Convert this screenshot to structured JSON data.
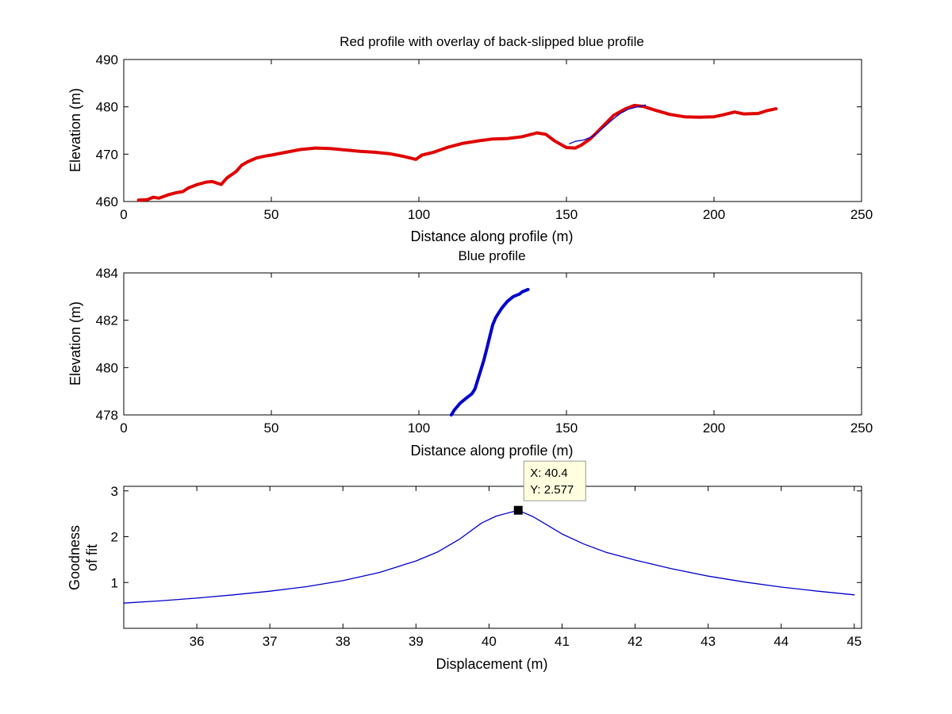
{
  "chart_data": [
    {
      "type": "line",
      "title": "Red profile with overlay of back-slipped blue profile",
      "xlabel": "Distance along profile (m)",
      "ylabel": "Elevation (m)",
      "xlim": [
        0,
        250
      ],
      "ylim": [
        460,
        490
      ],
      "xticks": [
        0,
        50,
        100,
        150,
        200,
        250
      ],
      "yticks": [
        460,
        470,
        480,
        490
      ],
      "series": [
        {
          "name": "red profile",
          "color": "#e00000",
          "style": "thick",
          "x": [
            5,
            8,
            10,
            12,
            15,
            18,
            20,
            22,
            25,
            28,
            30,
            33,
            35,
            38,
            40,
            42,
            45,
            48,
            50,
            55,
            60,
            65,
            70,
            75,
            80,
            85,
            90,
            95,
            99,
            101,
            105,
            110,
            115,
            120,
            125,
            130,
            135,
            140,
            143,
            146,
            150,
            153,
            155,
            158,
            160,
            163,
            166,
            170,
            173,
            176,
            180,
            185,
            190,
            195,
            200,
            203,
            207,
            210,
            215,
            218,
            221
          ],
          "y": [
            460.3,
            460.4,
            460.9,
            460.7,
            461.4,
            461.9,
            462.1,
            462.9,
            463.6,
            464.1,
            464.2,
            463.6,
            465.0,
            466.3,
            467.7,
            468.4,
            469.2,
            469.6,
            469.8,
            470.4,
            471.0,
            471.3,
            471.2,
            470.9,
            470.6,
            470.4,
            470.1,
            469.5,
            468.9,
            469.8,
            470.4,
            471.5,
            472.3,
            472.8,
            473.2,
            473.3,
            473.7,
            474.5,
            474.2,
            472.8,
            471.4,
            471.3,
            471.9,
            473.2,
            474.4,
            476.3,
            478.2,
            479.6,
            480.3,
            480.1,
            479.3,
            478.4,
            477.9,
            477.8,
            477.9,
            478.3,
            478.9,
            478.5,
            478.6,
            479.2,
            479.6
          ]
        },
        {
          "name": "back-slipped blue profile",
          "color": "#0000cc",
          "style": "thin",
          "x": [
            151,
            153,
            156,
            159,
            162,
            165,
            168,
            171,
            174,
            176.8
          ],
          "y": [
            472.2,
            472.7,
            473.0,
            473.8,
            475.3,
            477.0,
            478.5,
            479.5,
            480.0,
            480.4
          ]
        }
      ]
    },
    {
      "type": "line",
      "title": "Blue profile",
      "xlabel": "Distance along profile (m)",
      "ylabel": "Elevation (m)",
      "xlim": [
        0,
        250
      ],
      "ylim": [
        478,
        484
      ],
      "xticks": [
        0,
        50,
        100,
        150,
        200,
        250
      ],
      "yticks": [
        478,
        480,
        482,
        484
      ],
      "series": [
        {
          "name": "blue profile",
          "color": "#0000cc",
          "style": "thick",
          "x": [
            111,
            112,
            114,
            116,
            118,
            119,
            120,
            121,
            122,
            123,
            124,
            125,
            126,
            127,
            128,
            130,
            132,
            134,
            135,
            136,
            137
          ],
          "y": [
            478.0,
            478.2,
            478.5,
            478.7,
            478.9,
            479.1,
            479.5,
            479.9,
            480.3,
            480.8,
            481.3,
            481.8,
            482.1,
            482.3,
            482.5,
            482.8,
            483.0,
            483.1,
            483.2,
            483.25,
            483.3
          ]
        }
      ]
    },
    {
      "type": "line",
      "title": "",
      "xlabel": "Displacement (m)",
      "ylabel_lines": [
        "Goodness",
        "of fit"
      ],
      "xlim": [
        35,
        45.1
      ],
      "ylim": [
        0,
        3.1
      ],
      "ymin_visible": 0.3,
      "xticks": [
        36,
        37,
        38,
        39,
        40,
        41,
        42,
        43,
        44,
        45
      ],
      "yticks": [
        1,
        2,
        3
      ],
      "series": [
        {
          "name": "goodness of fit",
          "color": "#0000cc",
          "style": "thin",
          "x": [
            35,
            35.5,
            36,
            36.5,
            37,
            37.5,
            38,
            38.5,
            39,
            39.3,
            39.6,
            39.9,
            40.1,
            40.4,
            40.6,
            40.8,
            41.0,
            41.3,
            41.6,
            42.0,
            42.5,
            43.0,
            43.5,
            44.0,
            44.5,
            45.0
          ],
          "y": [
            0.55,
            0.6,
            0.66,
            0.73,
            0.81,
            0.91,
            1.04,
            1.22,
            1.47,
            1.67,
            1.95,
            2.3,
            2.45,
            2.577,
            2.44,
            2.25,
            2.06,
            1.84,
            1.66,
            1.49,
            1.3,
            1.14,
            1.01,
            0.9,
            0.81,
            0.73
          ]
        }
      ],
      "datatip": {
        "x": 40.4,
        "y": 2.577,
        "x_text": "X: 40.4",
        "y_text": "Y: 2.577"
      }
    }
  ]
}
